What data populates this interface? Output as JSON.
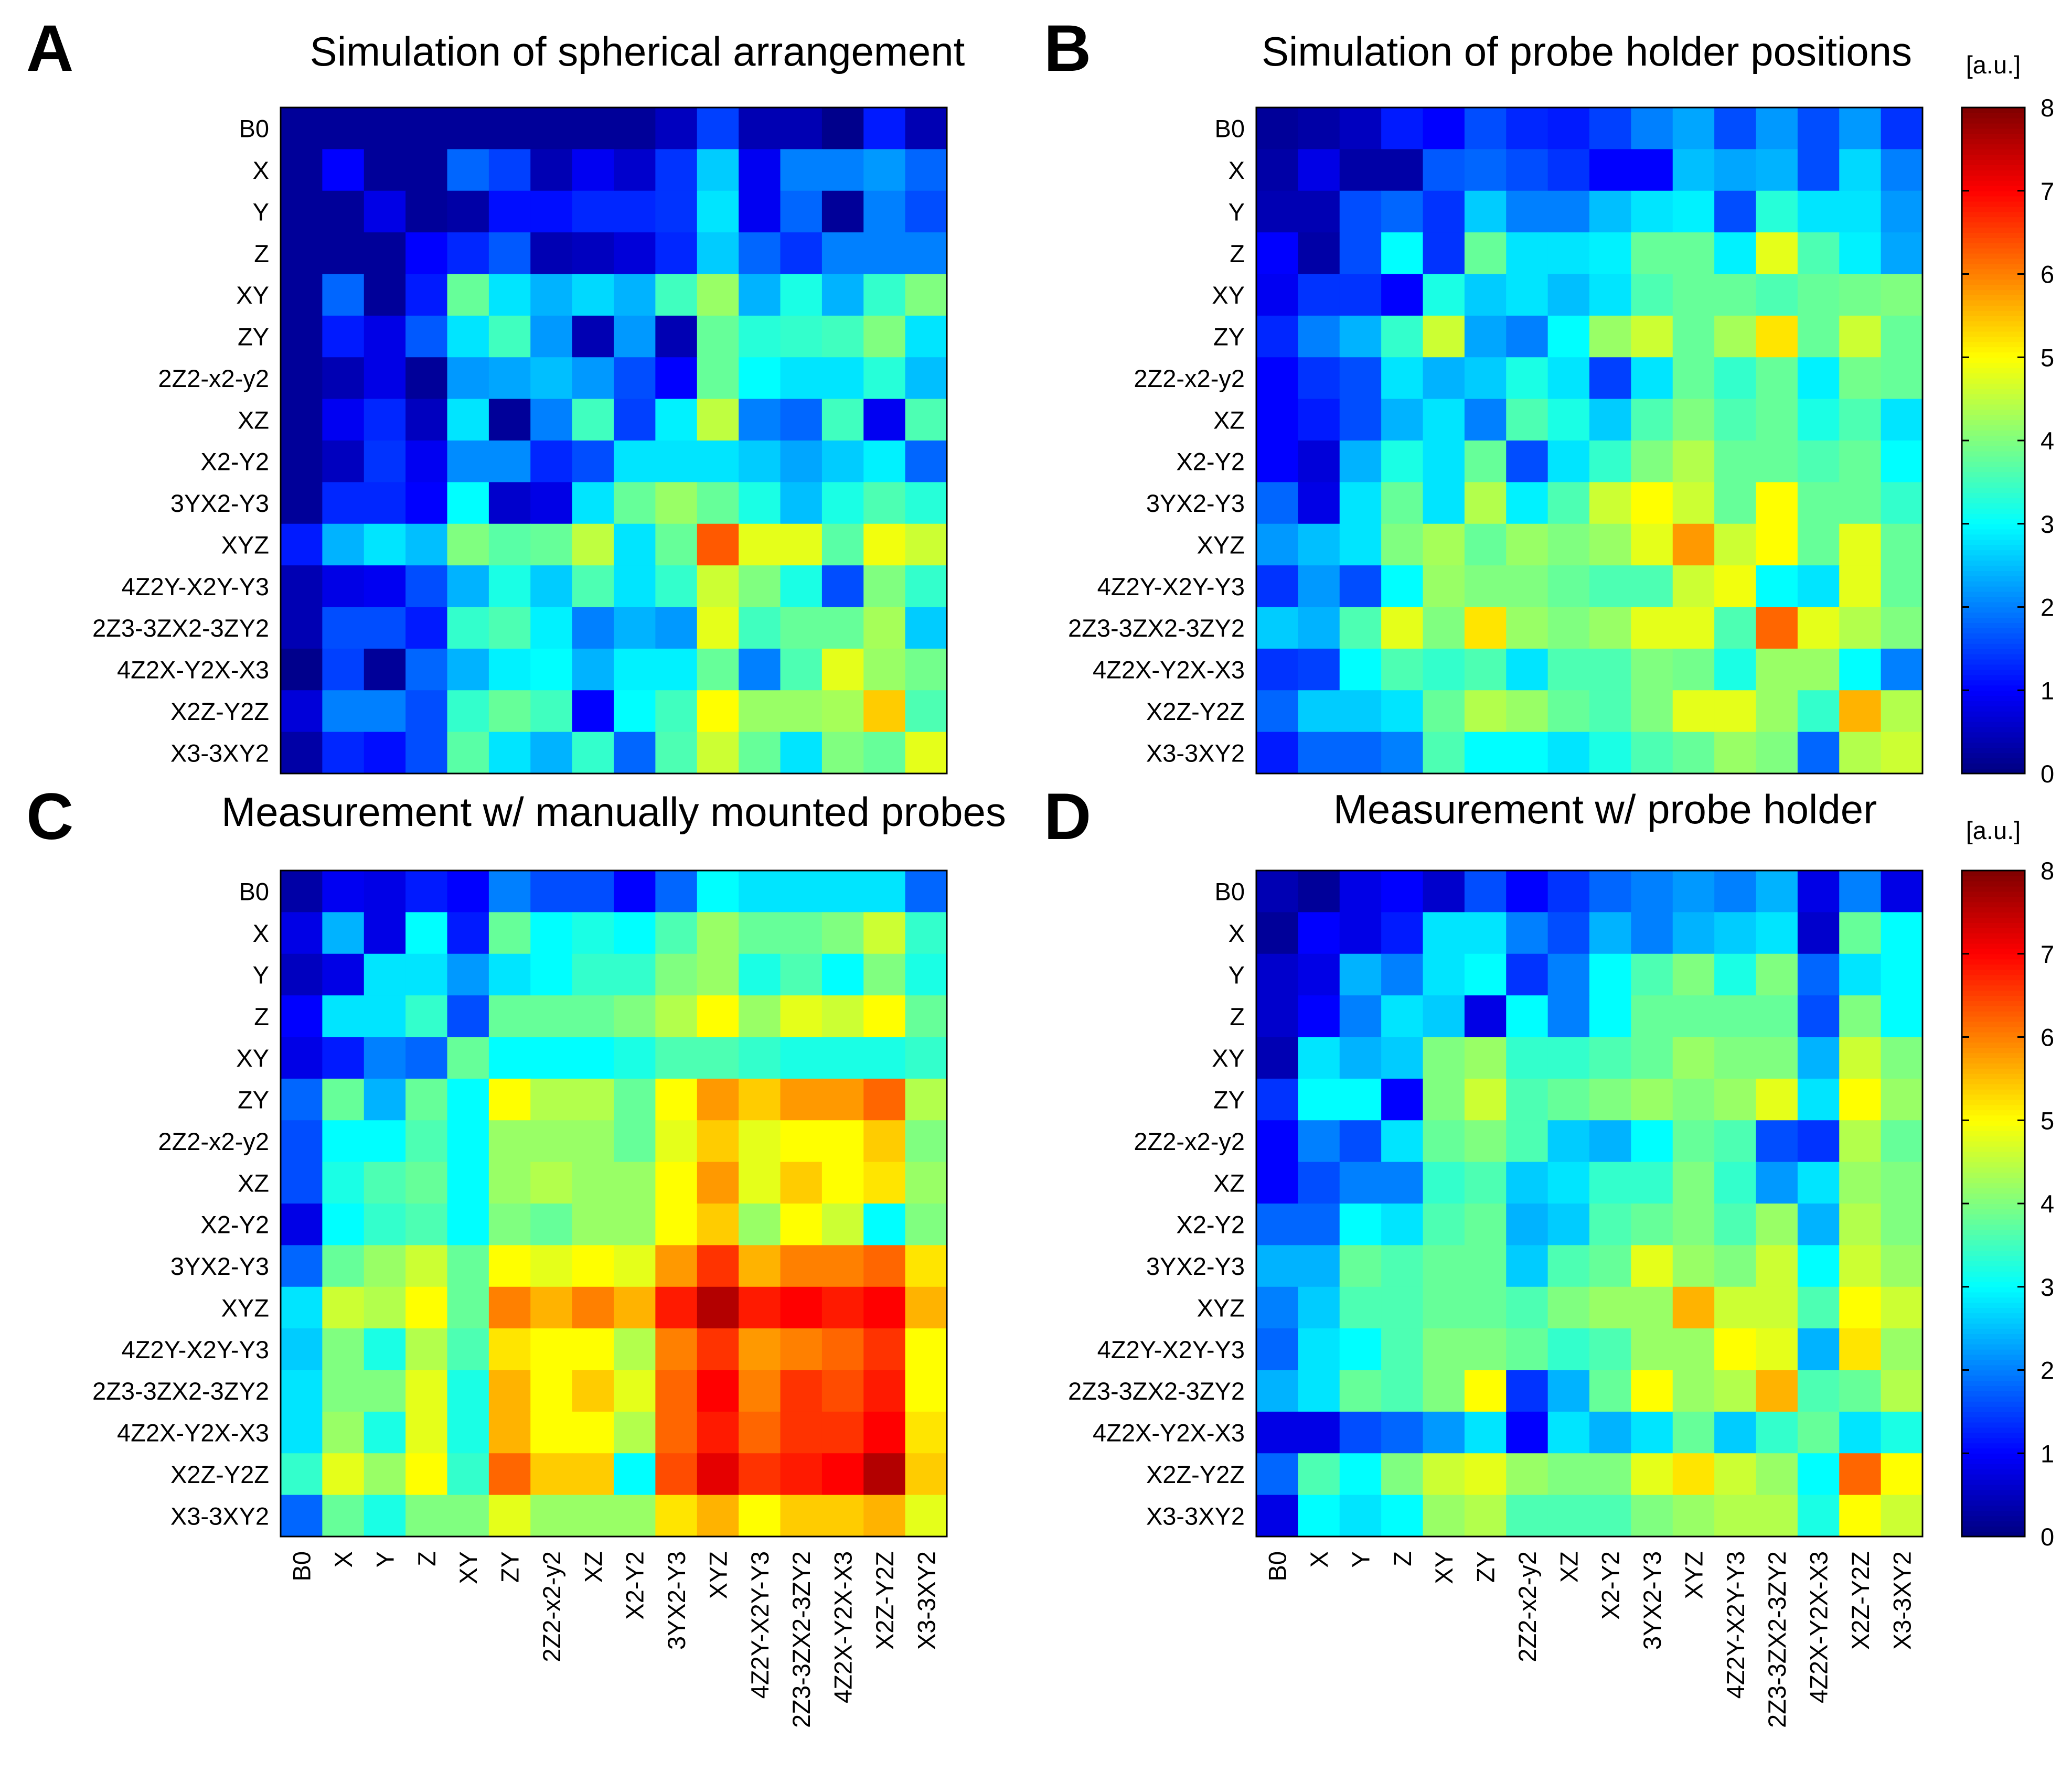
{
  "figure": {
    "units_label": "[a.u.]"
  },
  "labels": [
    "B0",
    "X",
    "Y",
    "Z",
    "XY",
    "ZY",
    "2Z2-x2-y2",
    "XZ",
    "X2-Y2",
    "3YX2-Y3",
    "XYZ",
    "4Z2Y-X2Y-Y3",
    "2Z3-3ZX2-3ZY2",
    "4Z2X-Y2X-X3",
    "X2Z-Y2Z",
    "X3-3XY2"
  ],
  "colorbar": {
    "min": 0,
    "max": 8,
    "ticks": [
      0,
      1,
      2,
      3,
      4,
      5,
      6,
      7,
      8
    ],
    "colormap": "jet"
  },
  "chart_data": [
    {
      "type": "heatmap",
      "panel": "A",
      "title": "Simulation of spherical arrangement",
      "show_x_ticks": false,
      "values": [
        [
          0.2,
          0.2,
          0.2,
          0.2,
          0.2,
          0.2,
          0.2,
          0.2,
          0.2,
          0.5,
          1.5,
          0.4,
          0.4,
          0.1,
          1.2,
          0.4
        ],
        [
          0.2,
          1.0,
          0.2,
          0.2,
          1.8,
          1.5,
          0.4,
          0.9,
          0.6,
          1.4,
          2.6,
          0.9,
          2.0,
          2.0,
          2.2,
          1.8
        ],
        [
          0.2,
          0.2,
          0.8,
          0.2,
          0.3,
          1.1,
          1.1,
          1.3,
          1.3,
          1.4,
          2.8,
          0.9,
          1.8,
          0.2,
          2.0,
          1.6
        ],
        [
          0.2,
          0.2,
          0.2,
          1.0,
          1.3,
          1.7,
          0.4,
          0.5,
          0.7,
          1.3,
          2.6,
          1.8,
          1.4,
          2.0,
          2.0,
          2.0
        ],
        [
          0.2,
          1.8,
          0.2,
          1.2,
          3.8,
          2.8,
          2.4,
          2.7,
          2.4,
          3.5,
          4.2,
          2.4,
          3.2,
          2.4,
          3.4,
          4.0
        ],
        [
          0.2,
          1.2,
          0.8,
          1.7,
          2.8,
          3.5,
          2.2,
          0.4,
          2.2,
          0.4,
          3.8,
          3.3,
          3.4,
          3.5,
          4.0,
          2.8
        ],
        [
          0.2,
          0.4,
          0.8,
          0.2,
          2.2,
          2.3,
          2.5,
          2.2,
          1.6,
          1.0,
          3.8,
          3.0,
          2.8,
          2.8,
          3.3,
          2.5
        ],
        [
          0.2,
          0.9,
          1.3,
          0.5,
          2.8,
          0.2,
          2.0,
          3.5,
          1.5,
          2.9,
          4.5,
          2.0,
          1.8,
          3.5,
          0.9,
          3.6
        ],
        [
          0.2,
          0.5,
          1.4,
          0.9,
          2.1,
          2.1,
          1.3,
          1.6,
          2.8,
          2.8,
          2.8,
          2.6,
          2.3,
          2.6,
          2.9,
          1.8
        ],
        [
          0.2,
          1.3,
          1.3,
          1.0,
          3.0,
          0.6,
          0.8,
          2.8,
          3.8,
          4.2,
          3.8,
          3.2,
          2.5,
          3.2,
          3.6,
          3.3
        ],
        [
          1.2,
          2.4,
          2.8,
          2.5,
          4.0,
          3.7,
          3.8,
          4.5,
          2.8,
          3.8,
          6.3,
          4.8,
          4.8,
          3.7,
          4.9,
          4.6
        ],
        [
          0.4,
          0.8,
          0.9,
          1.6,
          2.4,
          3.2,
          2.6,
          3.6,
          2.8,
          3.4,
          4.6,
          4.0,
          3.2,
          1.6,
          4.0,
          3.4
        ],
        [
          0.4,
          1.6,
          1.6,
          1.2,
          3.4,
          3.6,
          2.9,
          2.0,
          2.4,
          2.2,
          4.8,
          3.5,
          3.8,
          3.8,
          4.3,
          2.6
        ],
        [
          0.1,
          1.5,
          0.2,
          1.8,
          2.4,
          2.9,
          3.0,
          2.4,
          2.9,
          2.9,
          3.8,
          2.0,
          3.6,
          4.8,
          4.2,
          3.9
        ],
        [
          0.7,
          2.0,
          2.0,
          1.6,
          3.4,
          3.8,
          3.5,
          1.0,
          3.0,
          3.5,
          5.0,
          4.2,
          4.2,
          4.3,
          5.4,
          3.6
        ],
        [
          0.3,
          1.3,
          1.1,
          1.6,
          3.7,
          2.8,
          2.4,
          3.4,
          1.8,
          3.6,
          4.6,
          3.8,
          2.8,
          4.0,
          3.8,
          4.8
        ]
      ]
    },
    {
      "type": "heatmap",
      "panel": "B",
      "title": "Simulation of probe holder positions",
      "show_x_ticks": false,
      "values": [
        [
          0.2,
          0.3,
          0.5,
          1.2,
          1.0,
          1.6,
          1.3,
          1.2,
          1.5,
          2.0,
          2.3,
          1.6,
          2.2,
          1.6,
          2.2,
          1.4
        ],
        [
          0.3,
          0.8,
          0.3,
          0.3,
          1.7,
          1.8,
          1.6,
          1.4,
          1.0,
          1.0,
          2.5,
          2.3,
          2.4,
          1.6,
          2.7,
          2.0
        ],
        [
          0.4,
          0.4,
          1.6,
          1.8,
          1.4,
          2.6,
          2.0,
          2.0,
          2.5,
          2.8,
          2.9,
          1.6,
          3.3,
          2.8,
          2.8,
          2.2
        ],
        [
          1.0,
          0.3,
          1.6,
          3.0,
          1.4,
          3.8,
          2.8,
          2.8,
          2.9,
          3.8,
          3.8,
          2.9,
          4.8,
          3.6,
          2.9,
          2.3
        ],
        [
          0.9,
          1.4,
          1.4,
          1.0,
          3.2,
          2.6,
          2.8,
          2.5,
          2.8,
          3.6,
          3.8,
          3.8,
          3.6,
          3.8,
          3.9,
          4.0
        ],
        [
          1.3,
          2.0,
          2.4,
          3.4,
          4.6,
          2.3,
          2.0,
          3.0,
          4.2,
          4.6,
          3.8,
          4.3,
          5.2,
          3.8,
          4.6,
          3.8
        ],
        [
          1.0,
          1.4,
          1.6,
          2.8,
          2.4,
          2.6,
          3.2,
          2.8,
          1.5,
          2.8,
          3.8,
          3.4,
          3.8,
          2.9,
          3.9,
          3.8
        ],
        [
          1.0,
          1.2,
          1.6,
          2.4,
          2.8,
          2.0,
          3.6,
          3.2,
          2.6,
          3.6,
          4.0,
          3.6,
          3.8,
          3.2,
          3.6,
          2.8
        ],
        [
          1.0,
          0.7,
          2.4,
          3.2,
          2.8,
          3.8,
          1.6,
          2.8,
          3.4,
          4.0,
          4.4,
          3.8,
          3.8,
          3.6,
          3.8,
          3.0
        ],
        [
          1.8,
          0.8,
          2.8,
          3.8,
          2.8,
          4.4,
          2.9,
          3.6,
          4.6,
          5.0,
          4.6,
          3.8,
          5.0,
          3.8,
          3.8,
          3.4
        ],
        [
          2.2,
          2.5,
          2.8,
          4.0,
          4.3,
          3.8,
          4.2,
          4.0,
          4.2,
          4.8,
          5.8,
          4.6,
          5.0,
          3.8,
          4.8,
          3.8
        ],
        [
          1.4,
          2.2,
          1.6,
          3.0,
          4.2,
          4.0,
          4.0,
          3.8,
          3.6,
          3.6,
          4.6,
          4.9,
          3.0,
          2.8,
          4.8,
          3.8
        ],
        [
          2.6,
          2.4,
          3.6,
          4.8,
          4.0,
          5.2,
          4.2,
          4.0,
          4.2,
          4.8,
          4.8,
          3.6,
          6.2,
          4.8,
          4.4,
          4.0
        ],
        [
          1.4,
          1.5,
          3.0,
          3.6,
          3.4,
          3.6,
          2.8,
          3.6,
          3.6,
          4.0,
          3.9,
          3.2,
          4.2,
          4.2,
          3.0,
          2.0
        ],
        [
          1.8,
          2.6,
          2.6,
          2.8,
          3.8,
          4.4,
          4.2,
          3.8,
          3.6,
          4.0,
          4.8,
          4.8,
          4.2,
          3.4,
          5.6,
          4.4
        ],
        [
          1.2,
          1.8,
          1.8,
          2.0,
          3.6,
          3.0,
          3.0,
          2.8,
          3.2,
          3.6,
          3.8,
          4.2,
          4.0,
          1.8,
          4.4,
          4.6
        ]
      ]
    },
    {
      "type": "heatmap",
      "panel": "C",
      "title": "Measurement w/ manually mounted probes",
      "show_x_ticks": true,
      "values": [
        [
          0.3,
          0.9,
          0.8,
          1.2,
          1.0,
          2.0,
          1.6,
          1.6,
          1.0,
          1.8,
          3.0,
          2.8,
          2.8,
          2.8,
          2.8,
          1.8
        ],
        [
          0.8,
          2.4,
          0.8,
          3.0,
          1.2,
          3.8,
          3.0,
          3.2,
          3.0,
          3.6,
          4.2,
          3.8,
          3.8,
          4.0,
          4.6,
          3.4
        ],
        [
          0.5,
          0.8,
          2.8,
          2.8,
          2.2,
          2.8,
          3.0,
          3.4,
          3.4,
          4.0,
          4.2,
          3.2,
          3.6,
          3.0,
          4.0,
          3.2
        ],
        [
          1.0,
          2.8,
          2.8,
          3.4,
          1.6,
          3.8,
          3.8,
          3.8,
          4.0,
          4.4,
          5.0,
          4.2,
          4.8,
          4.6,
          5.0,
          3.8
        ],
        [
          0.8,
          1.2,
          2.0,
          1.8,
          3.8,
          3.0,
          3.0,
          3.0,
          3.2,
          3.6,
          3.6,
          3.4,
          3.2,
          3.2,
          3.2,
          3.4
        ],
        [
          1.8,
          3.8,
          2.4,
          3.8,
          3.0,
          5.0,
          4.4,
          4.4,
          3.8,
          5.0,
          5.8,
          5.4,
          5.8,
          5.8,
          6.2,
          4.4
        ],
        [
          1.6,
          3.0,
          3.0,
          3.6,
          3.0,
          4.2,
          4.2,
          4.2,
          3.8,
          4.8,
          5.4,
          4.8,
          5.0,
          5.0,
          5.4,
          4.0
        ],
        [
          1.6,
          3.2,
          3.6,
          3.8,
          3.0,
          4.2,
          4.4,
          4.2,
          4.2,
          5.0,
          5.8,
          4.8,
          5.4,
          5.0,
          5.2,
          4.2
        ],
        [
          0.8,
          3.0,
          3.4,
          3.6,
          3.0,
          4.0,
          3.8,
          4.2,
          4.2,
          5.0,
          5.4,
          4.2,
          5.0,
          4.6,
          3.0,
          4.0
        ],
        [
          1.8,
          3.8,
          4.2,
          4.6,
          3.8,
          5.0,
          4.8,
          5.0,
          4.8,
          5.8,
          6.6,
          5.6,
          6.0,
          6.0,
          6.2,
          5.2
        ],
        [
          2.8,
          4.6,
          4.4,
          5.0,
          3.8,
          6.0,
          5.6,
          6.0,
          5.6,
          6.8,
          7.6,
          6.8,
          7.0,
          6.8,
          7.0,
          5.6
        ],
        [
          2.6,
          4.0,
          3.2,
          4.4,
          3.6,
          5.2,
          5.0,
          5.0,
          4.4,
          6.0,
          6.6,
          5.8,
          6.0,
          6.2,
          6.6,
          5.0
        ],
        [
          2.8,
          4.0,
          4.0,
          4.8,
          3.2,
          5.6,
          5.0,
          5.4,
          4.8,
          6.2,
          7.0,
          6.0,
          6.6,
          6.4,
          6.8,
          5.0
        ],
        [
          2.8,
          4.2,
          3.2,
          4.8,
          3.2,
          5.6,
          5.0,
          5.0,
          4.4,
          6.2,
          6.8,
          6.2,
          6.6,
          6.6,
          7.0,
          5.2
        ],
        [
          3.4,
          4.8,
          4.2,
          5.0,
          3.4,
          6.2,
          5.4,
          5.4,
          3.0,
          6.4,
          7.2,
          6.6,
          6.8,
          7.0,
          7.6,
          5.4
        ],
        [
          1.8,
          3.8,
          3.2,
          4.0,
          4.0,
          4.8,
          4.2,
          4.2,
          4.2,
          5.2,
          5.6,
          5.0,
          5.4,
          5.4,
          5.6,
          4.8
        ]
      ]
    },
    {
      "type": "heatmap",
      "panel": "D",
      "title": "Measurement w/ probe holder",
      "show_x_ticks": true,
      "values": [
        [
          0.4,
          0.2,
          0.8,
          1.0,
          0.6,
          1.6,
          1.0,
          1.4,
          1.8,
          2.0,
          2.2,
          2.0,
          2.4,
          0.8,
          2.0,
          0.8
        ],
        [
          0.2,
          1.0,
          0.8,
          1.2,
          2.8,
          2.8,
          2.0,
          1.6,
          2.4,
          2.0,
          2.4,
          2.6,
          2.8,
          0.6,
          3.8,
          3.0
        ],
        [
          0.6,
          0.8,
          2.4,
          2.0,
          2.8,
          3.0,
          1.4,
          2.0,
          3.0,
          3.6,
          4.0,
          3.2,
          4.0,
          1.8,
          2.8,
          3.0
        ],
        [
          0.6,
          1.0,
          2.0,
          2.8,
          2.6,
          0.8,
          3.0,
          2.0,
          3.0,
          3.8,
          3.8,
          3.8,
          3.8,
          1.6,
          4.0,
          3.0
        ],
        [
          0.4,
          2.8,
          2.4,
          2.6,
          4.0,
          4.2,
          3.4,
          3.4,
          3.6,
          3.8,
          4.2,
          4.0,
          4.0,
          2.4,
          4.6,
          4.0
        ],
        [
          1.4,
          3.0,
          3.0,
          1.0,
          4.0,
          4.6,
          3.6,
          3.8,
          4.0,
          4.2,
          4.0,
          4.2,
          4.8,
          2.8,
          5.0,
          4.2
        ],
        [
          1.0,
          2.0,
          1.6,
          2.8,
          3.8,
          4.0,
          3.6,
          2.6,
          2.4,
          3.0,
          3.8,
          3.6,
          1.6,
          1.4,
          4.4,
          3.8
        ],
        [
          1.0,
          1.6,
          2.0,
          2.0,
          3.4,
          3.6,
          2.6,
          2.8,
          3.4,
          3.4,
          4.0,
          3.4,
          2.2,
          2.8,
          4.2,
          4.0
        ],
        [
          1.8,
          1.8,
          3.0,
          2.8,
          3.6,
          3.8,
          2.4,
          2.6,
          3.6,
          3.8,
          4.0,
          3.6,
          4.2,
          2.4,
          4.4,
          4.0
        ],
        [
          2.4,
          2.4,
          3.8,
          3.6,
          3.8,
          3.8,
          2.6,
          3.6,
          3.8,
          4.8,
          4.2,
          4.0,
          4.6,
          3.0,
          4.6,
          4.2
        ],
        [
          2.0,
          2.6,
          3.6,
          3.6,
          3.8,
          3.8,
          3.6,
          4.0,
          4.2,
          4.2,
          5.6,
          4.6,
          4.6,
          3.6,
          5.0,
          4.6
        ],
        [
          1.8,
          2.8,
          3.0,
          3.6,
          4.0,
          4.0,
          3.8,
          3.4,
          3.6,
          4.2,
          4.2,
          5.0,
          4.8,
          2.4,
          5.2,
          4.2
        ],
        [
          2.4,
          2.8,
          3.8,
          3.6,
          4.0,
          5.0,
          1.4,
          2.4,
          3.8,
          5.0,
          4.2,
          4.4,
          5.6,
          3.6,
          3.8,
          4.4
        ],
        [
          0.8,
          0.8,
          1.6,
          1.8,
          2.2,
          2.8,
          1.0,
          2.8,
          2.4,
          2.8,
          3.8,
          2.6,
          3.4,
          3.8,
          2.8,
          3.2
        ],
        [
          1.8,
          3.6,
          3.0,
          4.0,
          4.6,
          4.8,
          4.2,
          4.0,
          4.0,
          4.8,
          5.2,
          4.6,
          4.2,
          3.0,
          6.2,
          5.0
        ],
        [
          0.8,
          3.0,
          2.8,
          3.0,
          4.2,
          4.4,
          3.6,
          3.6,
          3.6,
          4.0,
          4.2,
          4.4,
          4.4,
          3.2,
          5.0,
          4.6
        ]
      ]
    }
  ]
}
